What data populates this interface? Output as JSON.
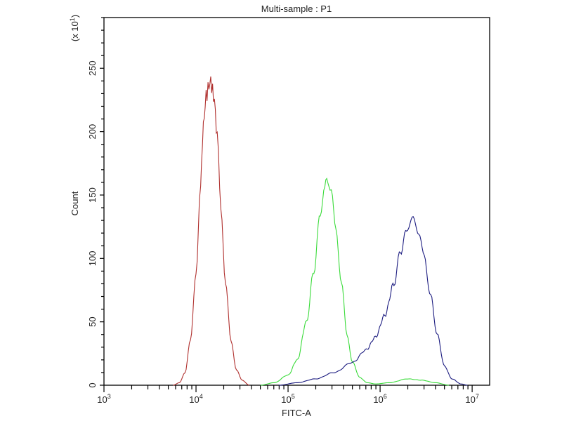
{
  "chart_data": {
    "type": "line",
    "title": "Multi-sample : P1",
    "xlabel": "FITC-A",
    "ylabel": "Count",
    "y_multiplier_label": "(x 10",
    "y_multiplier_exp": "1",
    "x_scale": "log",
    "xlim_log10": [
      3,
      7.19
    ],
    "ylim": [
      0,
      290
    ],
    "x_tick_labels": [
      {
        "base": "10",
        "exp": "3",
        "log10": 3
      },
      {
        "base": "10",
        "exp": "4",
        "log10": 4
      },
      {
        "base": "10",
        "exp": "5",
        "log10": 5
      },
      {
        "base": "10",
        "exp": "6",
        "log10": 6
      },
      {
        "base": "10",
        "exp": "7",
        "log10": 7
      }
    ],
    "y_tick_labels": [
      "0",
      "50",
      "100",
      "150",
      "200",
      "250"
    ],
    "y_tick_values": [
      0,
      50,
      100,
      150,
      200,
      250
    ],
    "grid": false,
    "series": [
      {
        "name": "red",
        "color": "#b0302e",
        "points_log10x_count": [
          [
            3.75,
            0
          ],
          [
            3.82,
            2
          ],
          [
            3.88,
            10
          ],
          [
            3.94,
            35
          ],
          [
            4.0,
            90
          ],
          [
            4.05,
            160
          ],
          [
            4.08,
            205
          ],
          [
            4.11,
            228
          ],
          [
            4.14,
            236
          ],
          [
            4.16,
            240
          ],
          [
            4.18,
            232
          ],
          [
            4.2,
            224
          ],
          [
            4.23,
            195
          ],
          [
            4.27,
            140
          ],
          [
            4.32,
            80
          ],
          [
            4.38,
            35
          ],
          [
            4.44,
            12
          ],
          [
            4.5,
            4
          ],
          [
            4.58,
            0
          ]
        ]
      },
      {
        "name": "green",
        "color": "#3adb3a",
        "points_log10x_count": [
          [
            4.7,
            0
          ],
          [
            4.85,
            2
          ],
          [
            5.0,
            8
          ],
          [
            5.1,
            20
          ],
          [
            5.2,
            50
          ],
          [
            5.28,
            90
          ],
          [
            5.35,
            135
          ],
          [
            5.4,
            160
          ],
          [
            5.43,
            163
          ],
          [
            5.47,
            155
          ],
          [
            5.52,
            125
          ],
          [
            5.58,
            80
          ],
          [
            5.64,
            40
          ],
          [
            5.7,
            18
          ],
          [
            5.78,
            6
          ],
          [
            5.86,
            2
          ],
          [
            5.95,
            1
          ],
          [
            6.1,
            2
          ],
          [
            6.3,
            5
          ],
          [
            6.45,
            4
          ],
          [
            6.6,
            2
          ],
          [
            6.75,
            0
          ]
        ]
      },
      {
        "name": "blue",
        "color": "#1c1c80",
        "points_log10x_count": [
          [
            4.9,
            0
          ],
          [
            5.1,
            2
          ],
          [
            5.3,
            5
          ],
          [
            5.5,
            10
          ],
          [
            5.7,
            18
          ],
          [
            5.85,
            28
          ],
          [
            5.95,
            38
          ],
          [
            6.05,
            55
          ],
          [
            6.15,
            80
          ],
          [
            6.22,
            105
          ],
          [
            6.3,
            125
          ],
          [
            6.36,
            130
          ],
          [
            6.42,
            122
          ],
          [
            6.48,
            100
          ],
          [
            6.55,
            70
          ],
          [
            6.62,
            40
          ],
          [
            6.7,
            15
          ],
          [
            6.78,
            5
          ],
          [
            6.88,
            1
          ],
          [
            6.95,
            0
          ]
        ]
      }
    ]
  }
}
